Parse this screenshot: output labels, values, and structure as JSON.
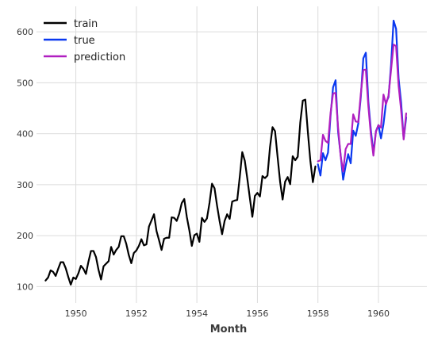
{
  "chart_data": {
    "type": "line",
    "title": "",
    "xlabel": "Month",
    "ylabel": "",
    "xlim": [
      1948.7,
      1961.6
    ],
    "ylim": [
      68,
      650
    ],
    "x_ticks": [
      1950,
      1952,
      1954,
      1956,
      1958,
      1960
    ],
    "x_tick_labels": [
      "1950",
      "1952",
      "1954",
      "1956",
      "1958",
      "1960"
    ],
    "y_ticks": [
      100,
      200,
      300,
      400,
      500,
      600
    ],
    "y_tick_labels": [
      "100",
      "200",
      "300",
      "400",
      "500",
      "600"
    ],
    "grid": true,
    "legend_position": "top-left",
    "colors": {
      "train": "#000000",
      "true": "#0a38f0",
      "prediction": "#b01fc0",
      "grid": "#dcdcdc"
    },
    "series": [
      {
        "name": "train",
        "x_start": 1949.0,
        "x_step": 0.0833333,
        "values": [
          112,
          118,
          132,
          129,
          121,
          135,
          148,
          148,
          136,
          119,
          104,
          118,
          115,
          126,
          141,
          135,
          125,
          149,
          170,
          170,
          158,
          133,
          114,
          140,
          145,
          150,
          178,
          163,
          172,
          178,
          199,
          199,
          184,
          162,
          146,
          166,
          171,
          180,
          193,
          181,
          183,
          218,
          230,
          242,
          209,
          191,
          172,
          194,
          196,
          196,
          236,
          235,
          229,
          243,
          264,
          272,
          237,
          211,
          180,
          201,
          204,
          188,
          235,
          227,
          234,
          264,
          302,
          293,
          259,
          229,
          203,
          229,
          242,
          233,
          267,
          269,
          270,
          315,
          364,
          347,
          312,
          274,
          237,
          278,
          284,
          277,
          317,
          313,
          318,
          374,
          413,
          405,
          355,
          306,
          271,
          306,
          315,
          301,
          356,
          348,
          355,
          422,
          465,
          467,
          404,
          347,
          305,
          336
        ]
      },
      {
        "name": "true",
        "x_start": 1958.0,
        "x_step": 0.0833333,
        "values": [
          340,
          318,
          362,
          348,
          363,
          435,
          491,
          505,
          404,
          359,
          310,
          337,
          360,
          342,
          406,
          396,
          420,
          472,
          548,
          559,
          463,
          407,
          362,
          405,
          417,
          391,
          419,
          461,
          472,
          535,
          622,
          606,
          508,
          461,
          390,
          432
        ]
      },
      {
        "name": "prediction",
        "x_start": 1958.0,
        "x_step": 0.0833333,
        "values": [
          346,
          348,
          398,
          386,
          382,
          440,
          479,
          480,
          412,
          357,
          326,
          370,
          380,
          380,
          438,
          424,
          423,
          478,
          525,
          526,
          454,
          398,
          357,
          404,
          417,
          412,
          477,
          458,
          475,
          525,
          575,
          572,
          494,
          446,
          389,
          440
        ]
      }
    ]
  }
}
